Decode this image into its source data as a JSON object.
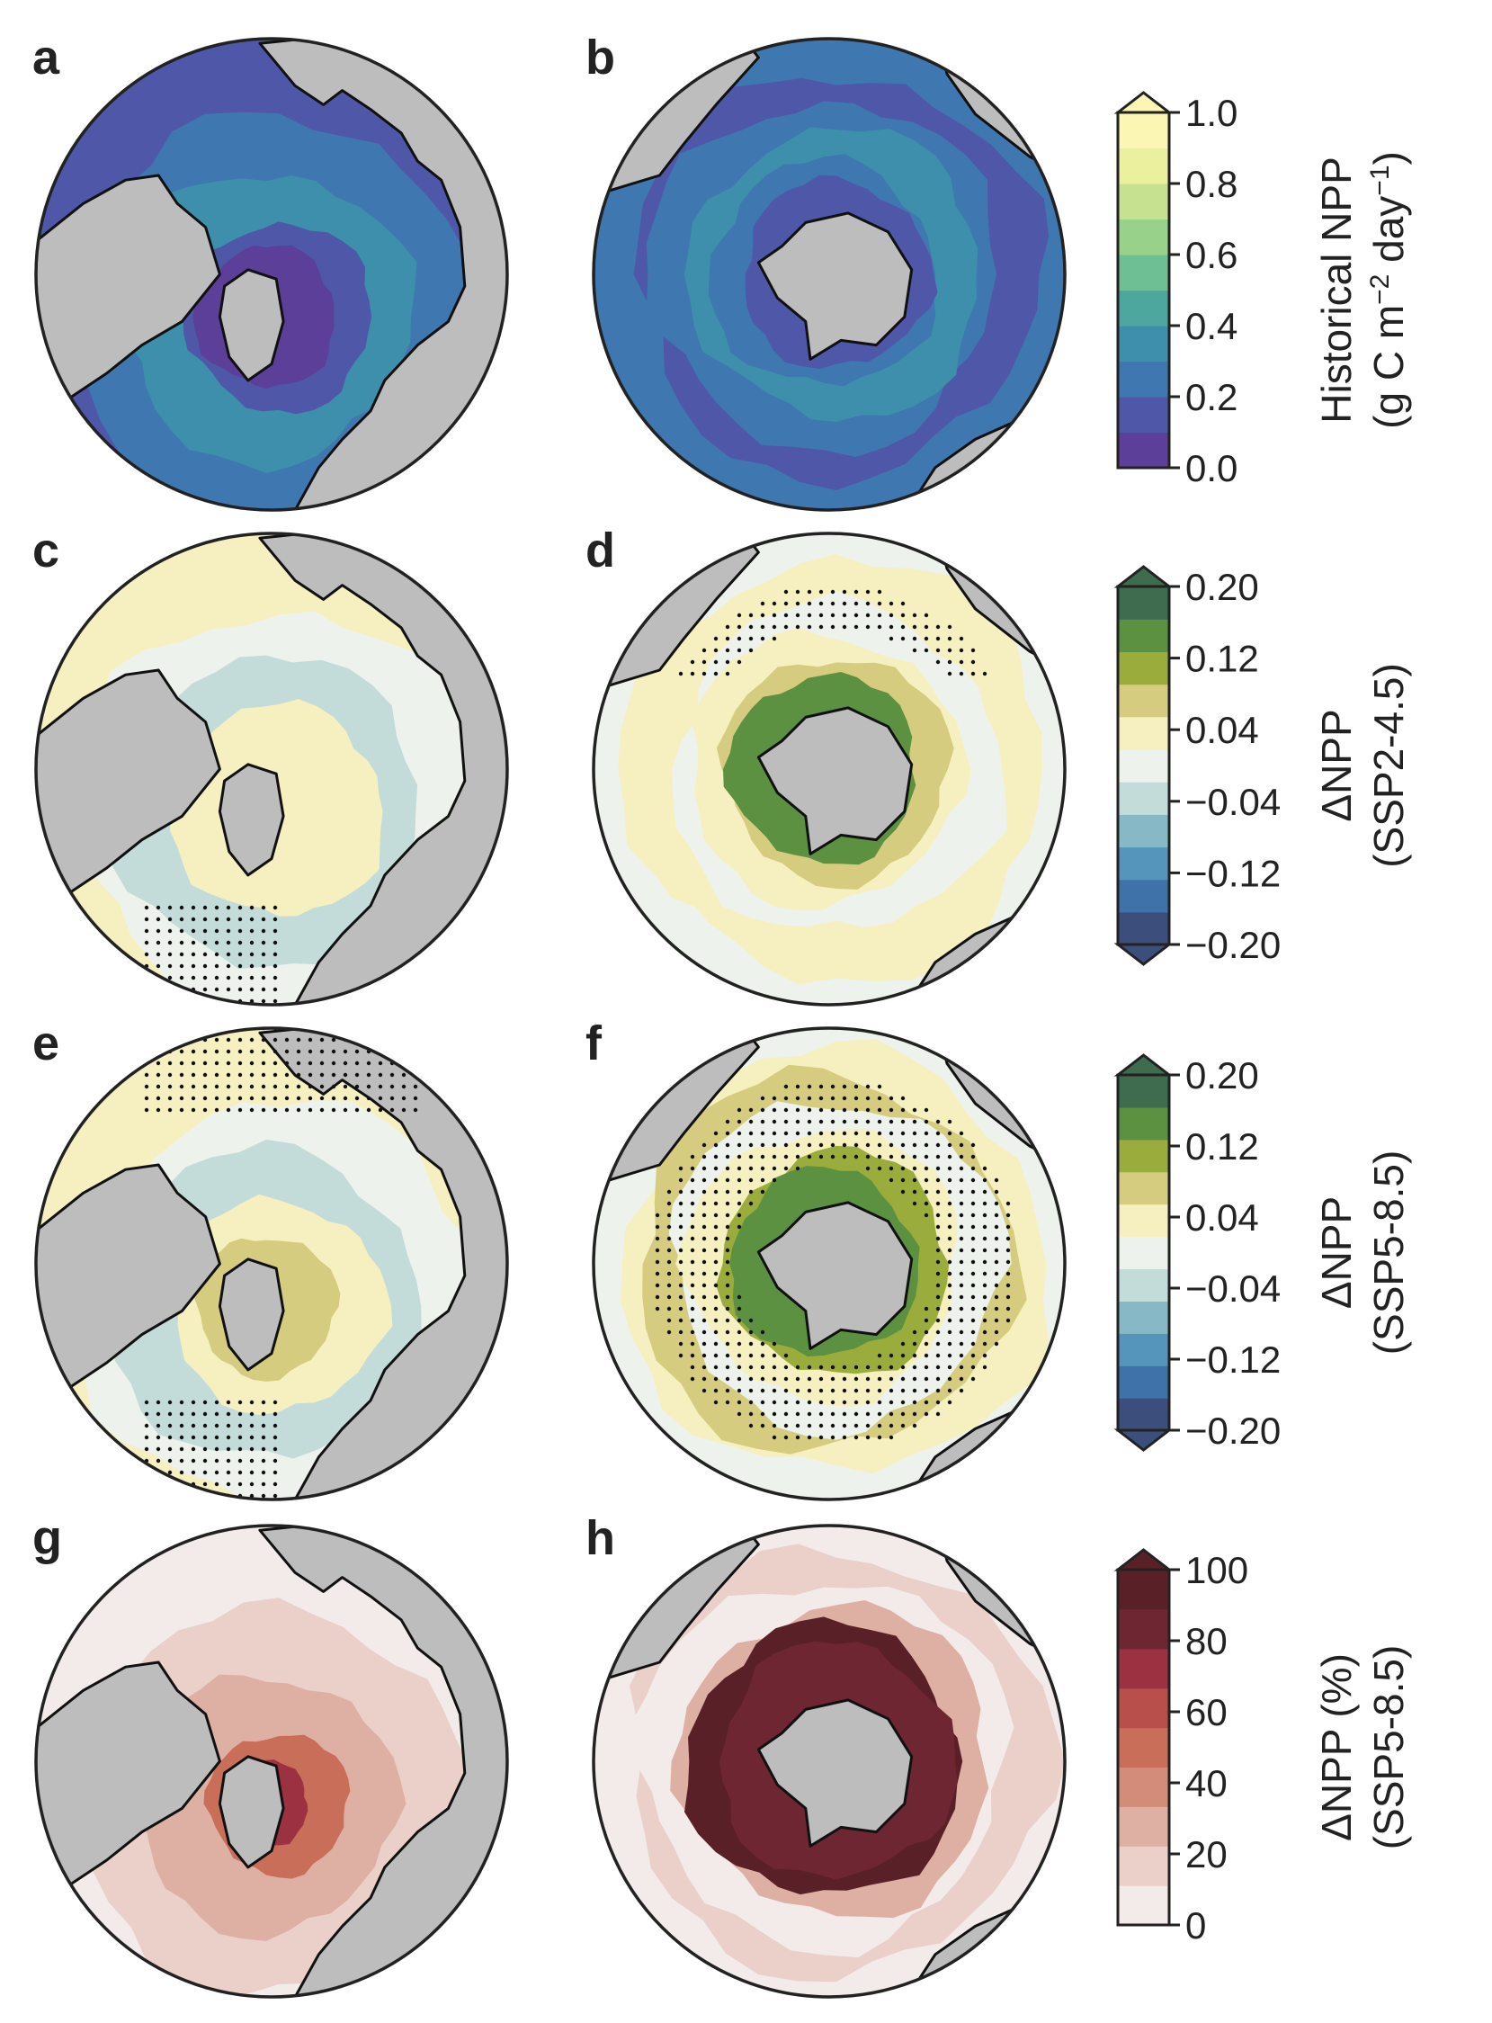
{
  "chart_data": {
    "type": "heatmap",
    "description_style": "polar stereographic maps of ocean net primary productivity",
    "panels": [
      {
        "label": "a",
        "hemisphere": "north",
        "row": 0,
        "field": "Historical NPP",
        "colorbar": 0
      },
      {
        "label": "b",
        "hemisphere": "south",
        "row": 0,
        "field": "Historical NPP",
        "colorbar": 0
      },
      {
        "label": "c",
        "hemisphere": "north",
        "row": 1,
        "field": "ΔNPP SSP2-4.5",
        "colorbar": 1,
        "stippling": true
      },
      {
        "label": "d",
        "hemisphere": "south",
        "row": 1,
        "field": "ΔNPP SSP2-4.5",
        "colorbar": 1,
        "stippling": true
      },
      {
        "label": "e",
        "hemisphere": "north",
        "row": 2,
        "field": "ΔNPP SSP5-8.5",
        "colorbar": 2,
        "stippling": true
      },
      {
        "label": "f",
        "hemisphere": "south",
        "row": 2,
        "field": "ΔNPP SSP5-8.5",
        "colorbar": 2,
        "stippling": true
      },
      {
        "label": "g",
        "hemisphere": "north",
        "row": 3,
        "field": "ΔNPP % SSP5-8.5",
        "colorbar": 3
      },
      {
        "label": "h",
        "hemisphere": "south",
        "row": 3,
        "field": "ΔNPP % SSP5-8.5",
        "colorbar": 3
      }
    ],
    "colorbars": [
      {
        "label_line1": "Historical NPP",
        "label_line2": "(g C m",
        "label_sup1": "−2",
        "label_mid": " day",
        "label_sup2": "−1",
        "label_end": ")",
        "ticks": [
          "1.0",
          "0.8",
          "0.6",
          "0.4",
          "0.2",
          "0.0"
        ],
        "range": [
          0.0,
          1.0
        ],
        "extend": "max",
        "colors": [
          "#5b3f99",
          "#4f58a8",
          "#3f78b0",
          "#3d8fab",
          "#4ea79e",
          "#6ebf93",
          "#98d28a",
          "#c6e190",
          "#eaf09e",
          "#fbf6b4"
        ]
      },
      {
        "label_line1": "ΔNPP",
        "label_line2": "(SSP2-4.5)",
        "ticks": [
          "0.20",
          "0.12",
          "0.04",
          "−0.04",
          "−0.12",
          "−0.20"
        ],
        "range": [
          -0.2,
          0.2
        ],
        "extend": "both",
        "colors": [
          "#3c4f7c",
          "#3f72a8",
          "#5595bb",
          "#86b9c5",
          "#c3dcd9",
          "#eef2ec",
          "#f6f0c0",
          "#d6cc7f",
          "#9aac3c",
          "#5b9140",
          "#3f6b4f"
        ]
      },
      {
        "label_line1": "ΔNPP",
        "label_line2": "(SSP5-8.5)",
        "ticks": [
          "0.20",
          "0.12",
          "0.04",
          "−0.04",
          "−0.12",
          "−0.20"
        ],
        "range": [
          -0.2,
          0.2
        ],
        "extend": "both",
        "colors": [
          "#3c4f7c",
          "#3f72a8",
          "#5595bb",
          "#86b9c5",
          "#c3dcd9",
          "#eef2ec",
          "#f6f0c0",
          "#d6cc7f",
          "#9aac3c",
          "#5b9140",
          "#3f6b4f"
        ]
      },
      {
        "label_line1": "ΔNPP (%)",
        "label_line2": "(SSP5-8.5)",
        "ticks": [
          "100",
          "80",
          "60",
          "40",
          "20",
          "0"
        ],
        "range": [
          0,
          100
        ],
        "extend": "max",
        "colors": [
          "#f3ebea",
          "#ead0c9",
          "#deb0a3",
          "#d28c79",
          "#c96e58",
          "#b94f4a",
          "#9c3142",
          "#6e2633",
          "#5a2027"
        ]
      }
    ],
    "land_color": "#bdbdbd",
    "coast_color": "#111111"
  }
}
